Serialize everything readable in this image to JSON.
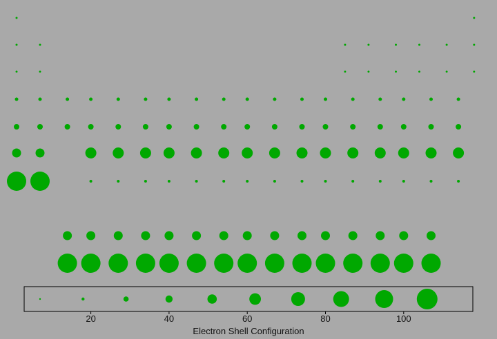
{
  "chart_data": {
    "type": "scatter",
    "title": "",
    "xlabel": "Electron Shell Configuration",
    "ylabel": "",
    "x_ticks": [
      20,
      40,
      60,
      80,
      100
    ],
    "grid": false,
    "colors": {
      "marker": "#00a800",
      "background": "#a9a9a9",
      "legend_border": "#000000"
    },
    "rows": [
      {
        "group": "period-1",
        "x": [
          1,
          118
        ],
        "sizes": [
          1,
          1
        ]
      },
      {
        "group": "period-2",
        "x": [
          1,
          7,
          85,
          91,
          98,
          104,
          111,
          118
        ],
        "sizes": [
          1,
          1,
          1,
          1,
          1,
          1,
          1,
          1
        ]
      },
      {
        "group": "period-3",
        "x": [
          1,
          7,
          85,
          91,
          98,
          104,
          111,
          118
        ],
        "sizes": [
          1,
          1,
          1,
          1,
          1,
          1,
          1,
          1
        ]
      },
      {
        "group": "period-4",
        "x": [
          1,
          7,
          14,
          20,
          27,
          34,
          40,
          47,
          54,
          60,
          67,
          74,
          80,
          87,
          94,
          100,
          107,
          114
        ],
        "sizes": [
          2,
          2,
          2,
          2,
          2,
          2,
          2,
          2,
          2,
          2,
          2,
          2,
          2,
          2,
          2,
          2,
          2,
          2
        ]
      },
      {
        "group": "period-5",
        "x": [
          1,
          7,
          14,
          20,
          27,
          34,
          40,
          47,
          54,
          60,
          67,
          74,
          80,
          87,
          94,
          100,
          107,
          114
        ],
        "sizes": [
          3,
          3,
          3,
          3,
          3,
          3,
          3,
          3,
          3,
          3,
          3,
          3,
          3,
          3,
          3,
          3,
          3,
          3
        ]
      },
      {
        "group": "period-6",
        "x": [
          1,
          7,
          20,
          27,
          34,
          40,
          47,
          54,
          60,
          67,
          74,
          80,
          87,
          94,
          100,
          107,
          114
        ],
        "sizes": [
          5,
          5,
          6,
          6,
          6,
          6,
          6,
          6,
          6,
          6,
          6,
          6,
          6,
          6,
          6,
          6,
          6
        ]
      },
      {
        "group": "period-7",
        "x": [
          1,
          7,
          20,
          27,
          34,
          40,
          47,
          54,
          60,
          67,
          74,
          80,
          87,
          94,
          100,
          107,
          114
        ],
        "sizes": [
          9,
          9,
          11,
          11,
          11,
          11,
          11,
          11,
          11,
          11,
          11,
          11,
          11,
          11,
          11,
          11,
          11
        ]
      },
      {
        "group": "f-block-1",
        "x": [
          14,
          20,
          27,
          34,
          40,
          47,
          54,
          60,
          67,
          74,
          80,
          87,
          94,
          100,
          107
        ],
        "sizes": [
          5,
          5,
          5,
          5,
          5,
          5,
          5,
          5,
          5,
          5,
          5,
          5,
          5,
          5,
          5
        ]
      },
      {
        "group": "f-block-2",
        "x": [
          14,
          20,
          27,
          34,
          40,
          47,
          54,
          60,
          67,
          74,
          80,
          87,
          94,
          100,
          107
        ],
        "sizes": [
          9,
          9,
          9,
          9,
          9,
          9,
          9,
          9,
          9,
          9,
          9,
          9,
          9,
          9,
          9
        ]
      }
    ],
    "legend": {
      "x": [
        7,
        18,
        29,
        40,
        51,
        62,
        73,
        84,
        95,
        106
      ],
      "sizes": [
        1,
        2,
        3,
        4,
        5,
        6,
        7,
        8,
        9,
        10
      ]
    }
  }
}
